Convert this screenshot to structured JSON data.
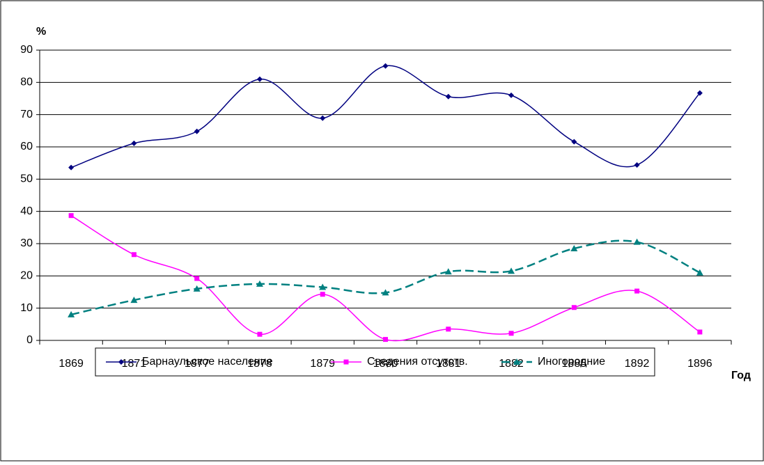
{
  "chart_data": {
    "type": "line",
    "y_label": "%",
    "x_label": "Год",
    "categories": [
      "1869",
      "1871",
      "1877",
      "1878",
      "1879",
      "1880",
      "1881",
      "1882",
      "1885",
      "1892",
      "1896"
    ],
    "series": [
      {
        "name": "Барнаульское население",
        "color": "#000080",
        "marker": "diamond",
        "dash": false,
        "values": [
          53.6,
          61.1,
          64.8,
          81,
          68.9,
          85.1,
          75.6,
          76,
          61.6,
          54.4,
          76.7
        ]
      },
      {
        "name": "Сведения отсутств.",
        "color": "#ff00ff",
        "marker": "square",
        "dash": false,
        "values": [
          38.7,
          26.6,
          19.2,
          1.9,
          14.3,
          0.3,
          3.5,
          2.2,
          10.2,
          15.3,
          2.6
        ]
      },
      {
        "name": "Иногородние",
        "color": "#008080",
        "marker": "triangle",
        "dash": true,
        "values": [
          8,
          12.5,
          16,
          17.5,
          16.5,
          14.8,
          21.3,
          21.5,
          28.5,
          30.5,
          21
        ]
      }
    ],
    "ylim": [
      0,
      90
    ],
    "yticks": [
      0,
      10,
      20,
      30,
      40,
      50,
      60,
      70,
      80,
      90
    ],
    "grid": true,
    "smooth": true,
    "legend": "bottom"
  }
}
